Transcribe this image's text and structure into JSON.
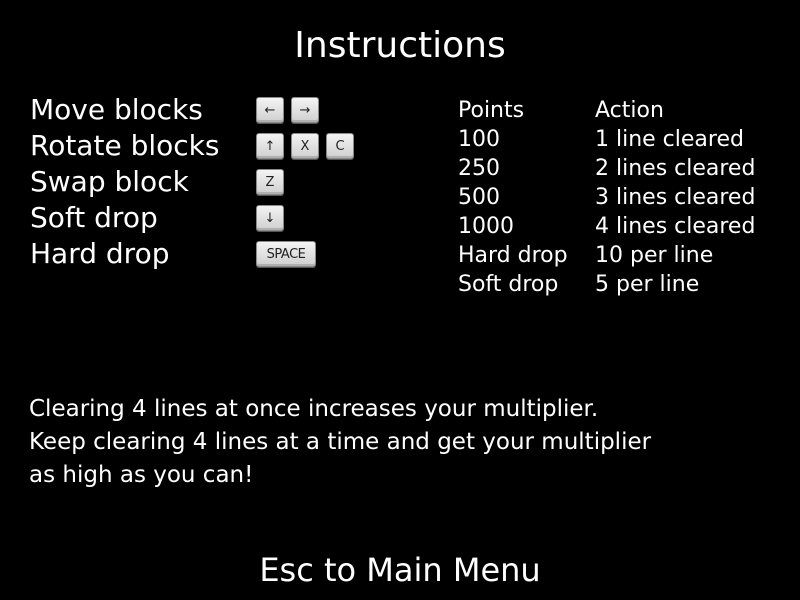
{
  "title": "Instructions",
  "controls": [
    {
      "label": "Move blocks",
      "keys": [
        "←",
        "→"
      ]
    },
    {
      "label": "Rotate blocks",
      "keys": [
        "↑",
        "X",
        "C"
      ]
    },
    {
      "label": "Swap block",
      "keys": [
        "Z"
      ]
    },
    {
      "label": "Soft drop",
      "keys": [
        "↓"
      ]
    },
    {
      "label": "Hard drop",
      "keys": [
        "SPACE"
      ]
    }
  ],
  "points_table": {
    "headers": [
      "Points",
      "Action"
    ],
    "rows": [
      [
        "100",
        "1 line cleared"
      ],
      [
        "250",
        "2 lines cleared"
      ],
      [
        "500",
        "3 lines cleared"
      ],
      [
        "1000",
        "4 lines cleared"
      ],
      [
        "Hard drop",
        "10 per line"
      ],
      [
        "Soft drop",
        "5 per line"
      ]
    ]
  },
  "description": [
    "Clearing 4 lines at once increases your multiplier.",
    "Keep clearing 4 lines at a time and get your multiplier",
    "as high as you can!"
  ],
  "footer": "Esc to Main Menu"
}
